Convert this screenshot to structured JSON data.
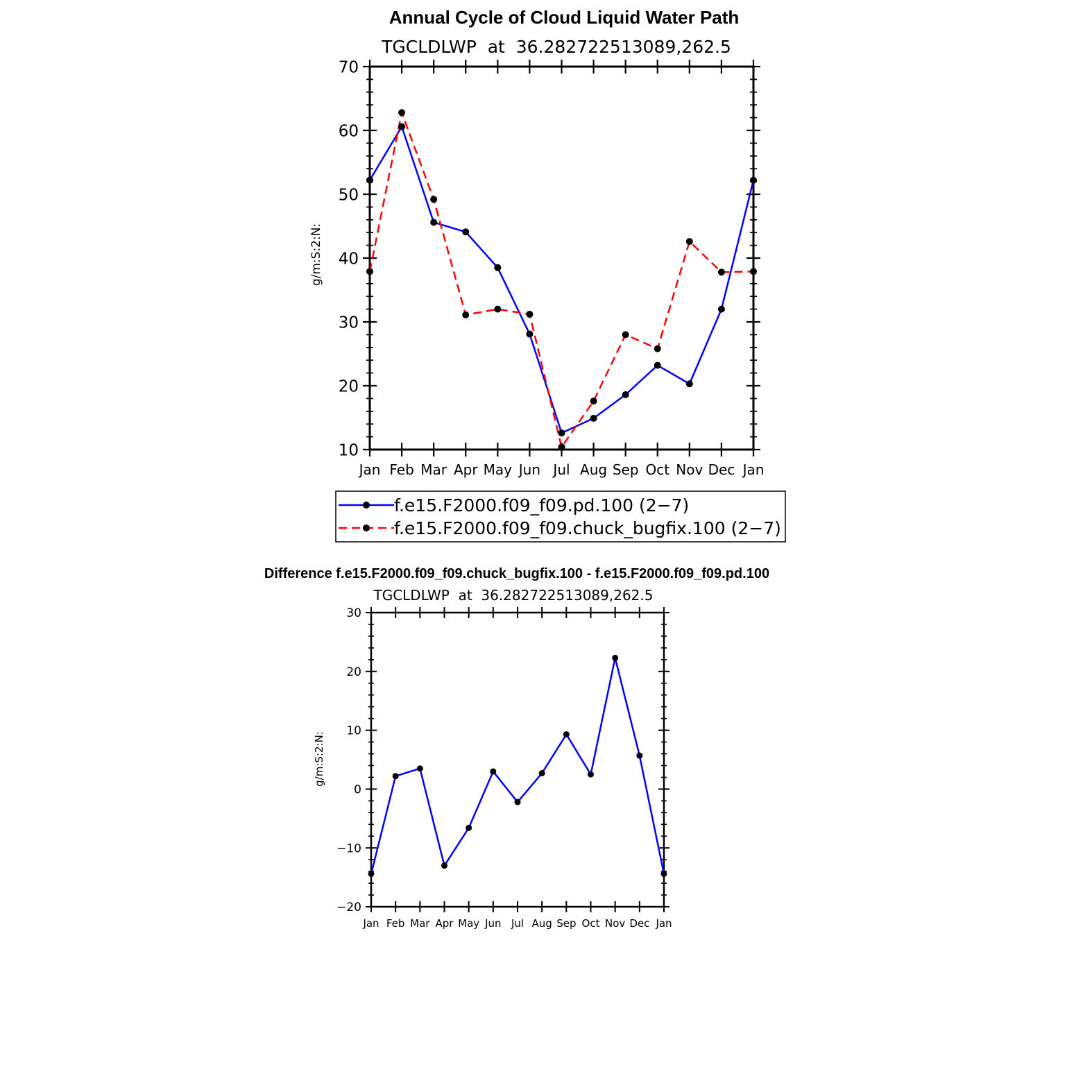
{
  "chart_data": [
    {
      "type": "line",
      "title": "Annual Cycle of Cloud Liquid Water Path",
      "subtitle": "TGCLDLWP  at  36.282722513089,262.5",
      "xlabel": "",
      "ylabel": "g/m:S:2:N:",
      "ylim": [
        10,
        70
      ],
      "yticks": [
        "10",
        "20",
        "30",
        "40",
        "50",
        "60",
        "70"
      ],
      "categories": [
        "Jan",
        "Feb",
        "Mar",
        "Apr",
        "May",
        "Jun",
        "Jul",
        "Aug",
        "Sep",
        "Oct",
        "Nov",
        "Dec",
        "Jan"
      ],
      "grid": false,
      "legend_position": "bottom",
      "series": [
        {
          "name": "f.e15.F2000.f09_f09.pd.100 (2−7)",
          "color": "#0000ff",
          "dash": "solid",
          "values": [
            52.2,
            60.6,
            45.6,
            44.1,
            38.5,
            28.1,
            12.6,
            14.9,
            18.6,
            23.2,
            20.3,
            32.0,
            52.2
          ]
        },
        {
          "name": "f.e15.F2000.f09_f09.chuck_bugfix.100 (2−7)",
          "color": "#ff0000",
          "dash": "dashed",
          "values": [
            37.9,
            62.8,
            49.2,
            31.1,
            32.0,
            31.2,
            10.4,
            17.6,
            28.0,
            25.8,
            42.6,
            37.8,
            37.9
          ]
        }
      ]
    },
    {
      "type": "line",
      "title": "Difference f.e15.F2000.f09_f09.chuck_bugfix.100 - f.e15.F2000.f09_f09.pd.100",
      "subtitle": "TGCLDLWP  at  36.282722513089,262.5",
      "xlabel": "",
      "ylabel": "g/m:S:2:N:",
      "ylim": [
        -20,
        30
      ],
      "yticks": [
        "−20",
        "−10",
        "0",
        "10",
        "20",
        "30"
      ],
      "categories": [
        "Jan",
        "Feb",
        "Mar",
        "Apr",
        "May",
        "Jun",
        "Jul",
        "Aug",
        "Sep",
        "Oct",
        "Nov",
        "Dec",
        "Jan"
      ],
      "grid": false,
      "series": [
        {
          "color": "#0000ff",
          "dash": "solid",
          "values": [
            -14.4,
            2.2,
            3.5,
            -13.0,
            -6.6,
            3.0,
            -2.2,
            2.7,
            9.3,
            2.5,
            22.3,
            5.7,
            -14.4
          ]
        }
      ]
    }
  ]
}
